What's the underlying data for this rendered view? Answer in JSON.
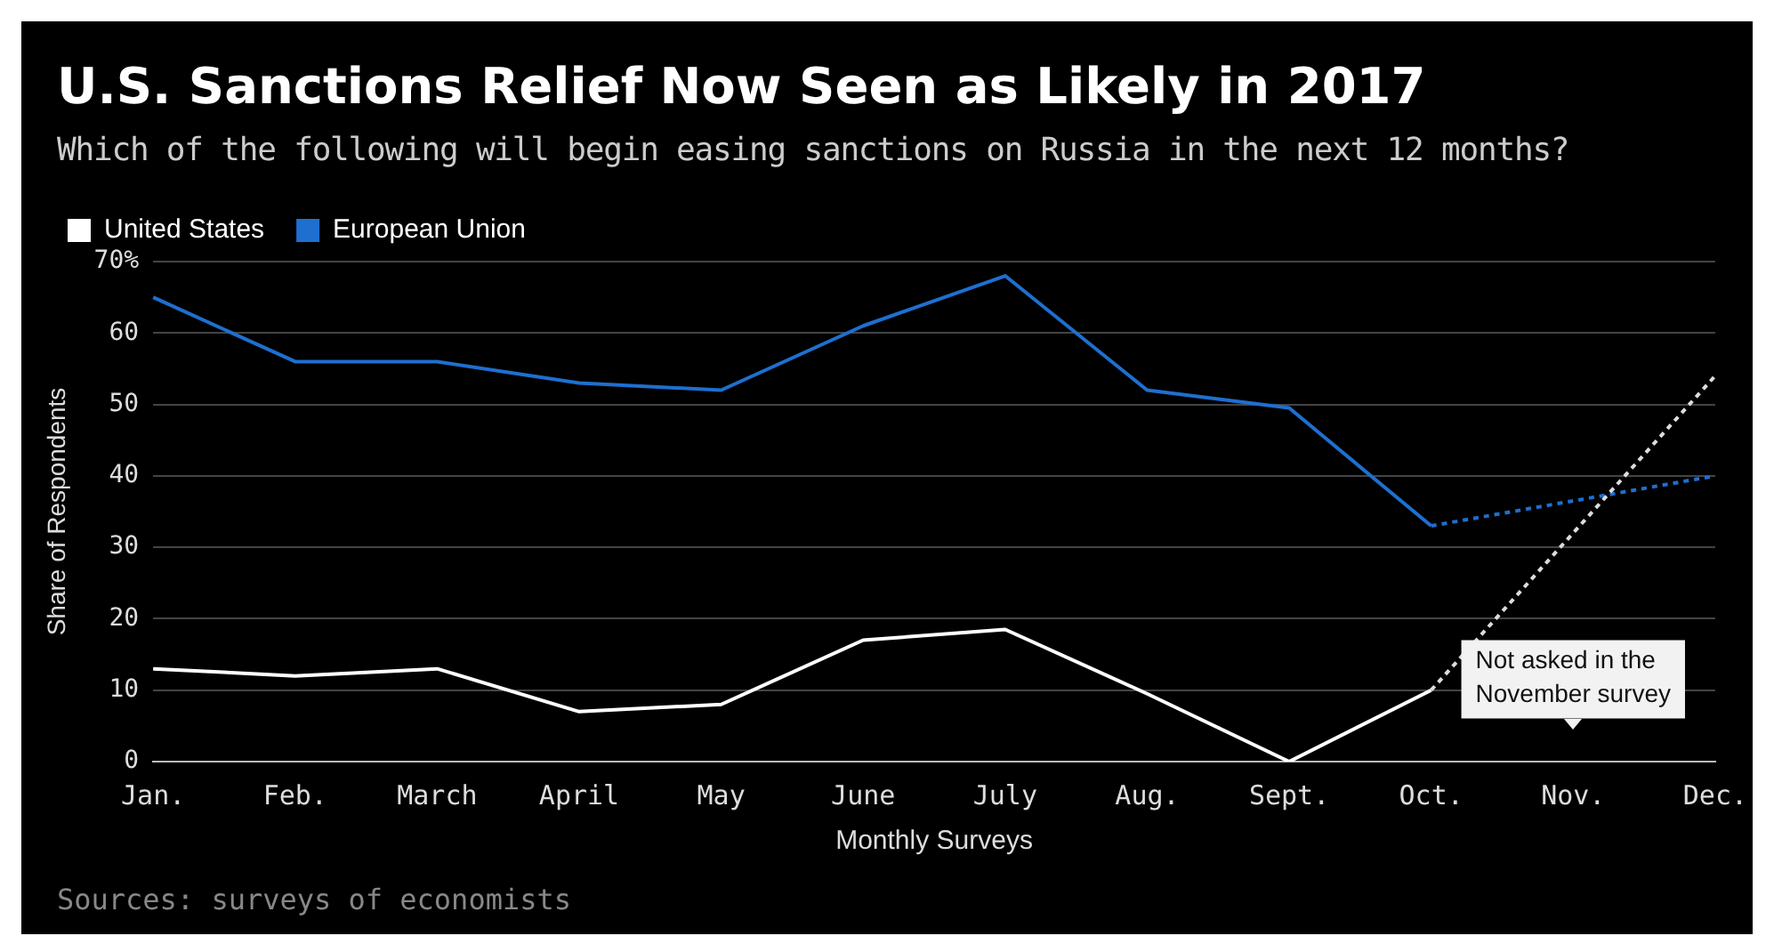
{
  "chart_data": {
    "type": "line",
    "title": "U.S. Sanctions Relief Now Seen as Likely in 2017",
    "subtitle": "Which of the following will begin easing sanctions on Russia in the next 12 months?",
    "xlabel": "Monthly Surveys",
    "ylabel": "Share of Respondents",
    "categories": [
      "Jan.",
      "Feb.",
      "March",
      "April",
      "May",
      "June",
      "July",
      "Aug.",
      "Sept.",
      "Oct.",
      "Nov.",
      "Dec."
    ],
    "series": [
      {
        "name": "United States",
        "color": "#ffffff",
        "values": [
          13,
          12,
          13,
          7,
          8,
          17,
          18.5,
          9.5,
          0,
          10,
          null,
          null
        ],
        "line_style": "solid"
      },
      {
        "name": "European Union",
        "color": "#1e6fd0",
        "values": [
          65,
          56,
          56,
          53,
          52,
          61,
          68,
          52,
          49.5,
          33,
          null,
          null
        ],
        "line_style": "solid"
      },
      {
        "color": "#dddddd",
        "values": [
          null,
          null,
          null,
          null,
          null,
          null,
          null,
          null,
          null,
          10,
          null,
          54
        ],
        "line_style": "dotted"
      },
      {
        "color": "#1e6fd0",
        "values": [
          null,
          null,
          null,
          null,
          null,
          null,
          null,
          null,
          null,
          33,
          null,
          40
        ],
        "line_style": "dotted"
      }
    ],
    "ylim": [
      0,
      70
    ],
    "yticks": [
      0,
      10,
      20,
      30,
      40,
      50,
      {
        "value": 70,
        "label": "70%"
      },
      60
    ],
    "grid": "y",
    "legend": "top left",
    "marker": "none",
    "annotations": [
      "Not asked in the November survey",
      "Sources: surveys of economists"
    ]
  }
}
